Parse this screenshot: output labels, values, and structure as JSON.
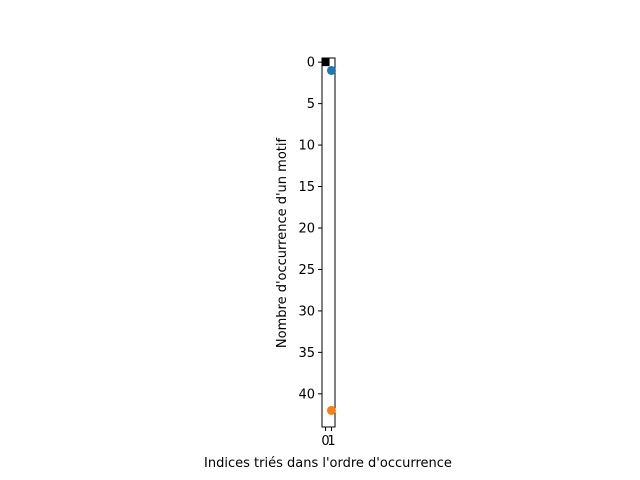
{
  "chart_data": {
    "type": "scatter",
    "title": "",
    "xlabel": "Indices triés dans l'ordre d'occurrence",
    "ylabel": "Nombre d'occurrence d'un motif",
    "xlim": [
      -0.6,
      1.6
    ],
    "ylim": [
      44,
      -0.5
    ],
    "y_inverted": true,
    "grid": false,
    "legend": "none",
    "xticks": [
      0,
      1
    ],
    "xtick_labels": [
      "0",
      "1"
    ],
    "yticks": [
      0,
      5,
      10,
      15,
      20,
      25,
      30,
      35,
      40
    ],
    "ytick_labels": [
      "0",
      "5",
      "10",
      "15",
      "20",
      "25",
      "30",
      "35",
      "40"
    ],
    "series": [
      {
        "marker": "square",
        "color": "#000000",
        "points": [
          {
            "x": 0,
            "y": 0
          }
        ]
      },
      {
        "marker": "circle",
        "color": "#1f77b4",
        "points": [
          {
            "x": 1,
            "y": 1
          }
        ]
      },
      {
        "marker": "circle",
        "color": "#ff7f0e",
        "points": [
          {
            "x": 1,
            "y": 42
          }
        ]
      }
    ]
  }
}
